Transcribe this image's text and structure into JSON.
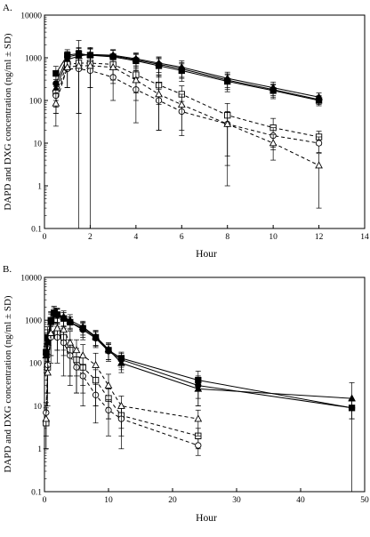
{
  "chart_data": [
    {
      "panel_label": "A.",
      "type": "line",
      "xlabel": "Hour",
      "ylabel": "DAPD and DXG concentration (ng/ml ± SD)",
      "yscale": "log",
      "xlim": [
        0,
        14
      ],
      "ylim": [
        0.1,
        10000
      ],
      "xticks": [
        0,
        2,
        4,
        6,
        8,
        10,
        12,
        14
      ],
      "yticks": [
        0.1,
        1,
        10,
        100,
        1000,
        10000
      ],
      "xtick_labels": [
        "0",
        "2",
        "4",
        "6",
        "8",
        "10",
        "12",
        "14"
      ],
      "ytick_labels": [
        "0.1",
        "1",
        "10",
        "100",
        "1000",
        "10000"
      ],
      "series": [
        {
          "marker": "square-filled",
          "line": "solid",
          "x": [
            0.5,
            1,
            1.5,
            2,
            3,
            4,
            5,
            6,
            8,
            10,
            12
          ],
          "y": [
            430,
            1150,
            1250,
            1150,
            1050,
            850,
            650,
            500,
            280,
            170,
            100
          ],
          "err": [
            200,
            400,
            500,
            500,
            450,
            350,
            300,
            220,
            120,
            60,
            25
          ]
        },
        {
          "marker": "circle-filled",
          "line": "solid",
          "x": [
            0.5,
            1,
            1.5,
            2,
            3,
            4,
            5,
            6,
            8,
            10,
            12
          ],
          "y": [
            250,
            1050,
            1200,
            1150,
            1100,
            900,
            700,
            550,
            300,
            180,
            105
          ],
          "err": [
            150,
            350,
            450,
            450,
            400,
            350,
            300,
            220,
            120,
            60,
            25
          ]
        },
        {
          "marker": "triangle-filled",
          "line": "solid",
          "x": [
            0.5,
            1,
            1.5,
            2,
            3,
            4,
            5,
            6,
            8,
            10,
            12
          ],
          "y": [
            190,
            900,
            1100,
            1200,
            1150,
            950,
            750,
            600,
            330,
            200,
            120
          ],
          "err": [
            120,
            300,
            400,
            450,
            400,
            350,
            300,
            250,
            130,
            70,
            30
          ]
        },
        {
          "marker": "square-open",
          "line": "dashed",
          "x": [
            0.5,
            1,
            1.5,
            2,
            3,
            4,
            5,
            6,
            8,
            10,
            12
          ],
          "y": [
            150,
            700,
            750,
            750,
            700,
            400,
            230,
            140,
            45,
            23,
            14
          ],
          "err": [
            100,
            500,
            1800,
            1000,
            400,
            250,
            150,
            80,
            40,
            15,
            5
          ]
        },
        {
          "marker": "circle-open",
          "line": "dashed",
          "x": [
            0.5,
            1,
            1.5,
            2,
            3,
            4,
            5,
            6,
            8,
            10,
            12
          ],
          "y": [
            130,
            550,
            550,
            500,
            350,
            180,
            100,
            55,
            28,
            15,
            10
          ],
          "err": [
            80,
            350,
            500,
            300,
            250,
            150,
            80,
            40,
            25,
            8,
            4
          ]
        },
        {
          "marker": "triangle-open",
          "line": "dashed",
          "x": [
            0.5,
            1,
            1.5,
            2,
            3,
            4,
            5,
            6,
            8,
            10,
            12
          ],
          "y": [
            85,
            600,
            650,
            650,
            600,
            300,
            140,
            80,
            28,
            10,
            3
          ],
          "err": [
            60,
            400,
            600,
            450,
            350,
            200,
            120,
            60,
            27,
            6,
            2.7
          ]
        }
      ]
    },
    {
      "panel_label": "B.",
      "type": "line",
      "xlabel": "Hour",
      "ylabel": "DAPD and DXG concentration (ng/ml ± SD)",
      "yscale": "log",
      "xlim": [
        0,
        50
      ],
      "ylim": [
        0.1,
        10000
      ],
      "xticks": [
        0,
        10,
        20,
        30,
        40,
        50
      ],
      "yticks": [
        0.1,
        1,
        10,
        100,
        1000,
        10000
      ],
      "xtick_labels": [
        "0",
        "10",
        "20",
        "30",
        "40",
        "50"
      ],
      "ytick_labels": [
        "0.1",
        "1",
        "10",
        "100",
        "1000",
        "10000"
      ],
      "series": [
        {
          "marker": "square-filled",
          "line": "solid",
          "x": [
            0.25,
            0.5,
            1,
            1.5,
            2,
            3,
            4,
            6,
            8,
            10,
            12,
            24,
            48
          ],
          "y": [
            180,
            400,
            1000,
            1500,
            1350,
            1100,
            900,
            650,
            400,
            200,
            130,
            40,
            9
          ],
          "err": [
            100,
            300,
            600,
            600,
            500,
            400,
            300,
            250,
            150,
            80,
            50,
            25,
            4
          ]
        },
        {
          "marker": "circle-filled",
          "line": "solid",
          "x": [
            0.25,
            0.5,
            1,
            1.5,
            2,
            3,
            4,
            6,
            8,
            10,
            12,
            24,
            48
          ],
          "y": [
            160,
            350,
            950,
            1400,
            1300,
            1100,
            900,
            600,
            380,
            190,
            120,
            30,
            9
          ],
          "err": [
            90,
            250,
            550,
            550,
            500,
            400,
            300,
            250,
            150,
            80,
            50,
            20,
            4
          ]
        },
        {
          "marker": "triangle-filled",
          "line": "solid",
          "x": [
            0.25,
            0.5,
            1,
            1.5,
            2,
            3,
            4,
            6,
            8,
            10,
            12,
            24,
            48
          ],
          "y": [
            150,
            300,
            900,
            1500,
            1400,
            1200,
            1000,
            700,
            420,
            210,
            100,
            25,
            15
          ],
          "err": [
            90,
            200,
            500,
            600,
            500,
            450,
            350,
            250,
            160,
            90,
            40,
            15,
            20
          ]
        },
        {
          "marker": "square-open",
          "line": "dashed",
          "x": [
            0.25,
            0.5,
            1,
            2,
            3,
            4,
            5,
            6,
            8,
            10,
            12,
            24
          ],
          "y": [
            4,
            80,
            450,
            500,
            400,
            200,
            120,
            80,
            40,
            15,
            6,
            2
          ],
          "err": [
            3,
            60,
            300,
            300,
            250,
            150,
            100,
            60,
            30,
            10,
            4,
            1
          ]
        },
        {
          "marker": "circle-open",
          "line": "dashed",
          "x": [
            0.25,
            0.5,
            1,
            2,
            3,
            4,
            5,
            6,
            8,
            10,
            12,
            24
          ],
          "y": [
            7,
            90,
            400,
            400,
            300,
            150,
            80,
            50,
            18,
            8,
            5,
            1.2
          ],
          "err": [
            5,
            70,
            300,
            300,
            250,
            120,
            60,
            40,
            14,
            6,
            4,
            0.5
          ]
        },
        {
          "marker": "triangle-open",
          "line": "dashed",
          "x": [
            0.25,
            0.5,
            1,
            2,
            3,
            4,
            5,
            6,
            8,
            10,
            12,
            24
          ],
          "y": [
            5,
            60,
            500,
            650,
            600,
            300,
            200,
            150,
            90,
            30,
            10,
            5
          ],
          "err": [
            4,
            50,
            350,
            450,
            400,
            250,
            150,
            120,
            80,
            25,
            7,
            3
          ]
        }
      ]
    }
  ]
}
